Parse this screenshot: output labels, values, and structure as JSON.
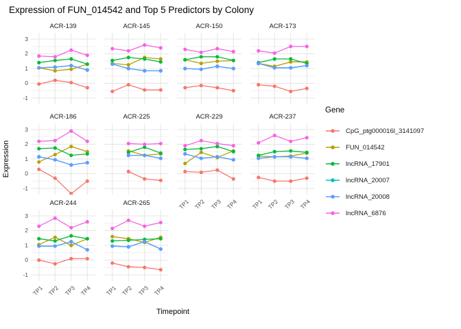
{
  "title": "Expression of FUN_014542 and Top 5 Predictors by Colony",
  "legend": {
    "title": "Gene",
    "items": [
      {
        "label": "CpG_ptg000016l_3141097",
        "color": "#F8766D"
      },
      {
        "label": "FUN_014542",
        "color": "#B79F00"
      },
      {
        "label": "lncRNA_17901",
        "color": "#00BA38"
      },
      {
        "label": "lncRNA_20007",
        "color": "#00BFC4"
      },
      {
        "label": "lncRNA_20008",
        "color": "#619CFF"
      },
      {
        "label": "lncRNA_6876",
        "color": "#F564E3"
      }
    ]
  },
  "chart_data": {
    "type": "line",
    "title": "Expression of FUN_014542 and Top 5 Predictors by Colony",
    "xlabel": "Timepoint",
    "ylabel": "Expression",
    "x_categories": [
      "TP1",
      "TP2",
      "TP3",
      "TP4"
    ],
    "ylim": [
      -1,
      3
    ],
    "yticks": [
      3,
      2,
      1,
      0,
      -1
    ],
    "grid": "white panel, light gray major gridlines at integers and vertical ticks, lighter minor gridlines at 0.5 steps",
    "legend_position": "right",
    "facet_variable": "Colony",
    "series": [
      {
        "name": "CpG_ptg000016l_3141097",
        "color": "#F8766D"
      },
      {
        "name": "FUN_014542",
        "color": "#B79F00"
      },
      {
        "name": "lncRNA_17901",
        "color": "#00BA38"
      },
      {
        "name": "lncRNA_20007",
        "color": "#00BFC4"
      },
      {
        "name": "lncRNA_20008",
        "color": "#619CFF"
      },
      {
        "name": "lncRNA_6876",
        "color": "#F564E3"
      }
    ],
    "facets": [
      {
        "name": "ACR-139",
        "values": [
          [
            -0.05,
            0.2,
            0.05,
            -0.3
          ],
          [
            1.05,
            0.85,
            0.95,
            1.3
          ],
          [
            1.4,
            1.55,
            1.65,
            1.3
          ],
          [
            1.05,
            1.1,
            1.2,
            0.9
          ],
          [
            1.05,
            1.1,
            1.2,
            0.9
          ],
          [
            1.85,
            1.8,
            2.25,
            1.9
          ]
        ]
      },
      {
        "name": "ACR-145",
        "values": [
          [
            -0.55,
            -0.1,
            -0.45,
            -0.45
          ],
          [
            1.35,
            1.25,
            1.75,
            1.65
          ],
          [
            1.55,
            1.75,
            1.65,
            1.45
          ],
          [
            1.3,
            1.0,
            0.85,
            0.85
          ],
          [
            1.3,
            1.0,
            0.85,
            0.85
          ],
          [
            2.35,
            2.2,
            2.6,
            2.4
          ]
        ]
      },
      {
        "name": "ACR-150",
        "values": [
          [
            -0.3,
            -0.15,
            -0.3,
            -0.5
          ],
          [
            1.6,
            1.35,
            1.5,
            1.55
          ],
          [
            1.6,
            1.8,
            1.8,
            1.55
          ],
          [
            1.0,
            0.95,
            1.15,
            1.0
          ],
          [
            1.0,
            0.95,
            1.15,
            1.0
          ],
          [
            2.3,
            2.1,
            2.35,
            2.15
          ]
        ]
      },
      {
        "name": "ACR-173",
        "values": [
          [
            -0.1,
            -0.2,
            -0.55,
            -0.35
          ],
          [
            1.35,
            1.15,
            1.45,
            1.45
          ],
          [
            1.4,
            1.65,
            1.65,
            1.35
          ],
          [
            1.35,
            1.05,
            1.05,
            1.2
          ],
          [
            1.35,
            1.05,
            1.05,
            1.2
          ],
          [
            2.2,
            2.05,
            2.5,
            2.5
          ]
        ]
      },
      {
        "name": "ACR-186",
        "values": [
          [
            0.3,
            -0.3,
            -1.35,
            -0.5
          ],
          [
            0.8,
            1.3,
            1.85,
            1.5
          ],
          [
            1.7,
            1.75,
            1.25,
            1.35
          ],
          [
            1.15,
            0.95,
            0.6,
            0.75
          ],
          [
            1.15,
            0.95,
            0.6,
            0.75
          ],
          [
            2.2,
            2.25,
            2.9,
            2.2
          ]
        ]
      },
      {
        "name": "ACR-225",
        "values": [
          [
            null,
            0.15,
            -0.35,
            -0.45
          ],
          [
            null,
            1.55,
            1.25,
            1.35
          ],
          [
            null,
            1.45,
            1.8,
            1.4
          ],
          [
            null,
            1.25,
            1.25,
            1.05
          ],
          [
            null,
            1.25,
            1.25,
            1.05
          ],
          [
            null,
            2.05,
            2.0,
            2.05
          ]
        ]
      },
      {
        "name": "ACR-229",
        "values": [
          [
            0.15,
            0.1,
            0.25,
            -0.35
          ],
          [
            0.7,
            1.45,
            1.1,
            1.55
          ],
          [
            1.65,
            1.7,
            1.85,
            1.5
          ],
          [
            1.35,
            1.05,
            1.15,
            0.95
          ],
          [
            1.35,
            1.05,
            1.15,
            0.95
          ],
          [
            1.9,
            2.25,
            2.05,
            1.9
          ]
        ]
      },
      {
        "name": "ACR-237",
        "values": [
          [
            -0.25,
            -0.5,
            -0.5,
            -0.3
          ],
          [
            1.2,
            1.15,
            1.2,
            1.4
          ],
          [
            1.25,
            1.5,
            1.55,
            1.45
          ],
          [
            1.05,
            1.15,
            1.15,
            1.05
          ],
          [
            1.05,
            1.15,
            1.15,
            1.05
          ],
          [
            2.1,
            2.6,
            2.2,
            2.45
          ]
        ]
      },
      {
        "name": "ACR-244",
        "values": [
          [
            0.0,
            -0.25,
            0.1,
            0.1
          ],
          [
            1.05,
            1.55,
            1.0,
            1.45
          ],
          [
            1.45,
            1.3,
            1.65,
            1.45
          ],
          [
            0.95,
            0.95,
            1.25,
            0.7
          ],
          [
            0.95,
            0.95,
            1.25,
            0.7
          ],
          [
            2.3,
            2.85,
            2.2,
            2.6
          ]
        ]
      },
      {
        "name": "ACR-265",
        "values": [
          [
            -0.2,
            -0.45,
            -0.5,
            -0.65
          ],
          [
            1.6,
            1.45,
            1.2,
            1.55
          ],
          [
            1.3,
            1.35,
            1.4,
            1.45
          ],
          [
            0.95,
            0.9,
            1.25,
            0.75
          ],
          [
            0.95,
            0.9,
            1.25,
            0.75
          ],
          [
            2.15,
            2.7,
            2.3,
            2.55
          ]
        ]
      }
    ]
  }
}
